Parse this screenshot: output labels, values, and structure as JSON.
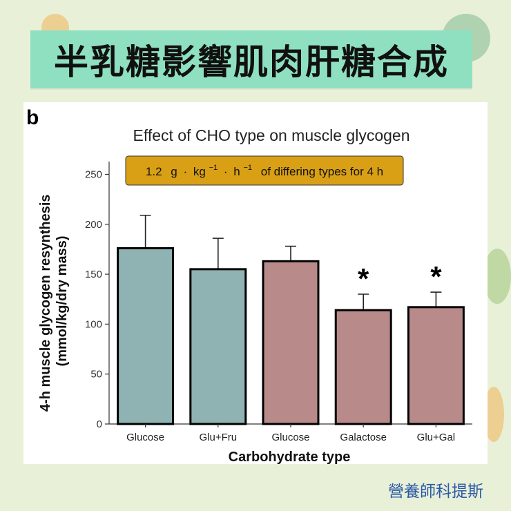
{
  "banner": {
    "title": "半乳糖影響肌肉肝糖合成"
  },
  "footer": {
    "brand": "營養師科提斯"
  },
  "chart_data": {
    "type": "bar",
    "panel_label": "b",
    "title": "Effect of CHO type on muscle glycogen",
    "annotation": {
      "rate": "1.2",
      "unit_g": "g",
      "unit_kg": "kg",
      "unit_h": "h",
      "exponent": "−1",
      "suffix": "of differing types for 4 h"
    },
    "categories": [
      "Glucose",
      "Glu+Fru",
      "Glucose",
      "Galactose",
      "Glu+Gal"
    ],
    "values": [
      176,
      155,
      163,
      114,
      117
    ],
    "error_upper": [
      209,
      186,
      178,
      130,
      132
    ],
    "bar_colors": [
      "#8fb3b2",
      "#8fb3b2",
      "#b98a8a",
      "#b98a8a",
      "#b98a8a"
    ],
    "significance": [
      "",
      "",
      "",
      "*",
      "*"
    ],
    "ylabel_line1": "4-h muscle glycogen resynthesis",
    "ylabel_line2": "(mmol/kg/dry mass)",
    "xlabel": "Carbohydrate type",
    "ylim": [
      0,
      260
    ],
    "yticks": [
      0,
      50,
      100,
      150,
      200,
      250
    ],
    "colors": {
      "annotation_box": "#d9a015",
      "bar_edge": "#000000"
    }
  }
}
